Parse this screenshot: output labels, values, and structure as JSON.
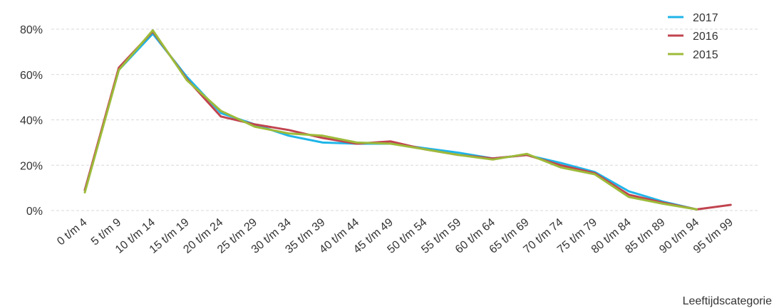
{
  "chart_data": {
    "type": "line",
    "categories": [
      "0 t/m 4",
      "5 t/m 9",
      "10 t/m 14",
      "15 t/m 19",
      "20 t/m 24",
      "25 t/m 29",
      "30 t/m 34",
      "35 t/m 39",
      "40 t/m 44",
      "45 t/m 49",
      "50 t/m 54",
      "55 t/m 59",
      "60 t/m 64",
      "65 t/m 69",
      "70 t/m 74",
      "75 t/m 79",
      "80 t/m 84",
      "85 t/m 89",
      "90 t/m 94",
      "95 t/m 99"
    ],
    "series": [
      {
        "name": "2017",
        "color": "#1fb5e8",
        "values": [
          9,
          62,
          78,
          59,
          43,
          38,
          33,
          30,
          29.5,
          29.5,
          27.5,
          25.5,
          23,
          24.5,
          21,
          17,
          8.5,
          4,
          0.5,
          null
        ]
      },
      {
        "name": "2016",
        "color": "#c0444f",
        "values": [
          9,
          63,
          79,
          58,
          41.5,
          38,
          35.5,
          32,
          29.5,
          30.5,
          27,
          24.5,
          23,
          24.5,
          20,
          16.5,
          7,
          3.5,
          0.5,
          2.5
        ]
      },
      {
        "name": "2015",
        "color": "#9dbb3a",
        "values": [
          8,
          62,
          79.5,
          57.5,
          44,
          37,
          34,
          33,
          30,
          29.5,
          27,
          24.5,
          22.5,
          25,
          19,
          16,
          6,
          3,
          0.5,
          null
        ]
      }
    ],
    "y_ticks": [
      "0%",
      "20%",
      "40%",
      "60%",
      "80%"
    ],
    "y_tick_values": [
      0,
      20,
      40,
      60,
      80
    ],
    "ylim": [
      0,
      85
    ],
    "xlabel": "Leeftijdscategorie",
    "ylabel": "",
    "title": "",
    "legend_position": "top-right",
    "grid": true,
    "gridline_color": "#d9d9d9"
  }
}
